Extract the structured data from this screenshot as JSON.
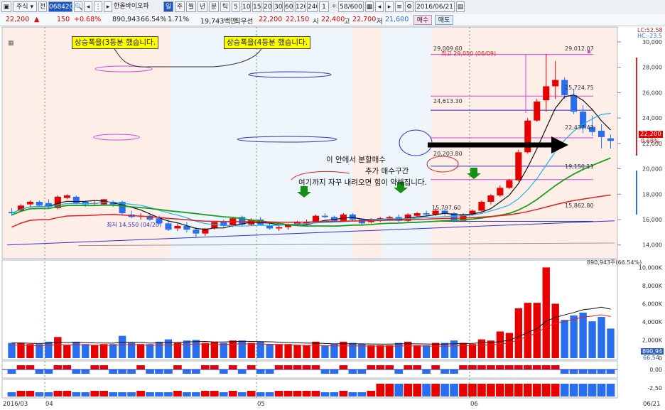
{
  "toolbar": {
    "market": "주식",
    "code": "068420",
    "name": "한올바이오파",
    "period_tabs": [
      "일",
      "주",
      "월",
      "년",
      "분",
      "틱"
    ],
    "minute_tabs": [
      "5",
      "10",
      "15",
      "20",
      "30",
      "60",
      "120",
      "240"
    ],
    "unit": "1",
    "page": "58/600",
    "date": "2016/06/21"
  },
  "info": {
    "price": "22,200",
    "change": "150",
    "change_pct": "+0.68%",
    "volume": "890,943",
    "vol_ratio": "66.54%",
    "turnover": "1.71%",
    "amount": "19,743백만",
    "prev_label": "최우선",
    "prev_price": "22,200",
    "bid": "22,150",
    "open_label": "시",
    "open": "22,400",
    "high_label": "고",
    "high": "22,700",
    "low_label": "저",
    "low": "21,600",
    "buy_btn": "매수",
    "sell_btn": "매도"
  },
  "annotations": {
    "note1": "상승폭을(3등분 했습니다.",
    "note2": "상승폭을(4등분 했습니다.",
    "text1": "이 안에서 분할매수",
    "text2": "추가 매수구간",
    "text3": "여기까지 자꾸 내려오면 힘이 약해집니다."
  },
  "price_labels": {
    "lc": "LC:52.58",
    "hc": "HC:-23.5",
    "max_note": "최고 29,050 (06/09)",
    "min_note": "최저 14,550 (04/20)",
    "lvl_29009": "29,009.60",
    "lvl_29012": "29,012.07",
    "lvl_25724": "25,724.75",
    "lvl_24613": "24,613.30",
    "lvl_22437": "22,437.43",
    "lvl_20203": "20,203.80",
    "lvl_19150": "19,150.11",
    "lvl_15862": "15,862.80",
    "lvl_15797": "15,797.60",
    "cur_price": "22,200",
    "cur_pct": "0.68%"
  },
  "y_axis": [
    "30,000",
    "28,000",
    "26,000",
    "24,000",
    "22,000",
    "20,000",
    "18,000",
    "16,000",
    "14,000"
  ],
  "vol_axis": [
    "10,000K",
    "8,000K",
    "6,000K",
    "4,000K",
    "2,000K",
    "0"
  ],
  "vol_label": "890,943주(66.54%)",
  "vol_cur": "890,94",
  "vol_cur2": "66,54",
  "osc1_axis": "0,00",
  "osc2_axis": "-2,50",
  "x_axis": [
    "2016/03",
    "04",
    "05",
    "06",
    "06/21"
  ],
  "colors": {
    "up": "#e60000",
    "down": "#2a6ef0",
    "ma5": "#111111",
    "ma10": "#22b0ee",
    "ma20": "#1aa020",
    "ma60": "#e02020",
    "ma120": "#3030d0"
  },
  "chart_data": {
    "type": "candlestick",
    "candles": [
      [
        16600,
        16900,
        16300,
        16500
      ],
      [
        16700,
        17200,
        16600,
        17100
      ],
      [
        17200,
        17500,
        17000,
        17400
      ],
      [
        17400,
        17500,
        17000,
        17100
      ],
      [
        17300,
        17600,
        16900,
        17000
      ],
      [
        16900,
        17900,
        16800,
        17800
      ],
      [
        17700,
        18000,
        17600,
        17900
      ],
      [
        17800,
        17900,
        17200,
        17300
      ],
      [
        17400,
        17500,
        17000,
        17200
      ],
      [
        17300,
        17500,
        17100,
        17300
      ],
      [
        17200,
        17600,
        17100,
        17600
      ],
      [
        17400,
        17500,
        17000,
        17200
      ],
      [
        17400,
        17500,
        16300,
        16500
      ],
      [
        16400,
        16700,
        16100,
        16200
      ],
      [
        16300,
        16500,
        16000,
        16300
      ],
      [
        16300,
        16400,
        15900,
        16000
      ],
      [
        16100,
        16300,
        15600,
        15700
      ],
      [
        15700,
        16000,
        15100,
        15200
      ],
      [
        15300,
        15700,
        15100,
        15500
      ],
      [
        15500,
        15800,
        15000,
        15200
      ],
      [
        15200,
        15400,
        14550,
        14900
      ],
      [
        14900,
        15300,
        14700,
        15300
      ],
      [
        15300,
        15900,
        15200,
        15800
      ],
      [
        15800,
        16000,
        15400,
        15500
      ],
      [
        15500,
        16200,
        15400,
        16100
      ],
      [
        16200,
        16300,
        15500,
        15600
      ],
      [
        15600,
        16100,
        15500,
        16000
      ],
      [
        16000,
        16200,
        15500,
        15600
      ],
      [
        15500,
        15700,
        15200,
        15300
      ],
      [
        15300,
        15600,
        15100,
        15400
      ],
      [
        15400,
        15700,
        15200,
        15600
      ],
      [
        15600,
        15900,
        15500,
        15800
      ],
      [
        15700,
        16000,
        15600,
        15800
      ],
      [
        15800,
        16400,
        15700,
        16300
      ],
      [
        16300,
        16500,
        16100,
        16200
      ],
      [
        16200,
        16300,
        15800,
        15900
      ],
      [
        15900,
        16500,
        15800,
        16400
      ],
      [
        16400,
        16500,
        15900,
        16000
      ],
      [
        16000,
        16100,
        15600,
        15700
      ],
      [
        15800,
        16100,
        15700,
        16000
      ],
      [
        16000,
        16200,
        15800,
        16100
      ],
      [
        16100,
        16300,
        15900,
        16200
      ],
      [
        16200,
        16400,
        15800,
        15900
      ],
      [
        15900,
        16500,
        15800,
        16400
      ],
      [
        16300,
        16600,
        16200,
        16500
      ],
      [
        16500,
        16700,
        16300,
        16400
      ],
      [
        16400,
        16900,
        16300,
        16700
      ],
      [
        16700,
        16900,
        16300,
        16500
      ],
      [
        16500,
        16600,
        15797,
        15900
      ],
      [
        15900,
        16500,
        15900,
        16400
      ],
      [
        16400,
        16800,
        16300,
        16700
      ],
      [
        16700,
        17500,
        16600,
        17400
      ],
      [
        17400,
        18000,
        17200,
        17900
      ],
      [
        17900,
        18700,
        17800,
        18500
      ],
      [
        18500,
        19200,
        18400,
        19100
      ],
      [
        19100,
        21500,
        19000,
        21300
      ],
      [
        21300,
        24000,
        21200,
        23800
      ],
      [
        23800,
        25500,
        23700,
        25300
      ],
      [
        25400,
        29050,
        24500,
        26500
      ],
      [
        26500,
        28500,
        25500,
        27000
      ],
      [
        27000,
        27200,
        25500,
        25800
      ],
      [
        25800,
        26300,
        24300,
        24500
      ],
      [
        24500,
        25000,
        22800,
        23200
      ],
      [
        23300,
        24200,
        22600,
        22900
      ],
      [
        23000,
        23500,
        21600,
        22500
      ],
      [
        22400,
        22700,
        21600,
        22200
      ]
    ]
  }
}
